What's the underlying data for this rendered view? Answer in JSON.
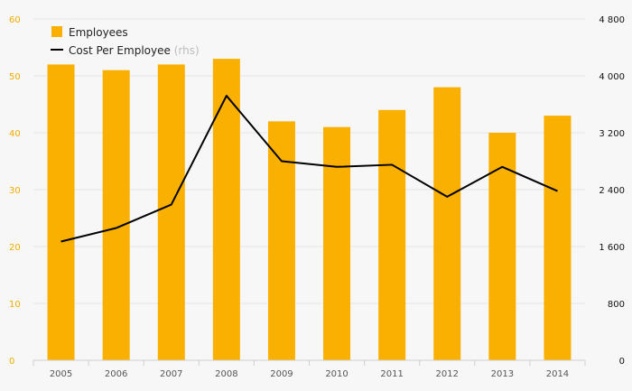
{
  "chart_data": {
    "type": "bar",
    "categories": [
      "2005",
      "2006",
      "2007",
      "2008",
      "2009",
      "2010",
      "2011",
      "2012",
      "2013",
      "2014"
    ],
    "series": [
      {
        "name": "Employees",
        "type": "bar",
        "axis": "left",
        "values": [
          52,
          51,
          52,
          53,
          42,
          41,
          44,
          48,
          40,
          43
        ]
      },
      {
        "name": "Cost Per Employee",
        "type": "line",
        "axis": "right",
        "values": [
          1670,
          1860,
          2190,
          3720,
          2800,
          2720,
          2750,
          2300,
          2720,
          2380
        ]
      }
    ],
    "legend": [
      {
        "label": "Employees",
        "note": ""
      },
      {
        "label": "Cost Per Employee",
        "note": "(rhs)"
      }
    ],
    "y_left": {
      "lim": [
        0,
        60
      ],
      "ticks": [
        "0",
        "10",
        "20",
        "30",
        "40",
        "50",
        "60"
      ]
    },
    "y_right": {
      "lim": [
        0,
        4800
      ],
      "ticks": [
        "0",
        "800",
        "1 600",
        "2 400",
        "3 200",
        "4 000",
        "4 800"
      ]
    },
    "legend_position": "top-left",
    "grid": true,
    "colors": {
      "bar": "#f9b000",
      "line": "#000000",
      "grid": "#e4e4e4",
      "left_axis_text": "#f0ad00",
      "right_axis_text": "#111111"
    }
  }
}
